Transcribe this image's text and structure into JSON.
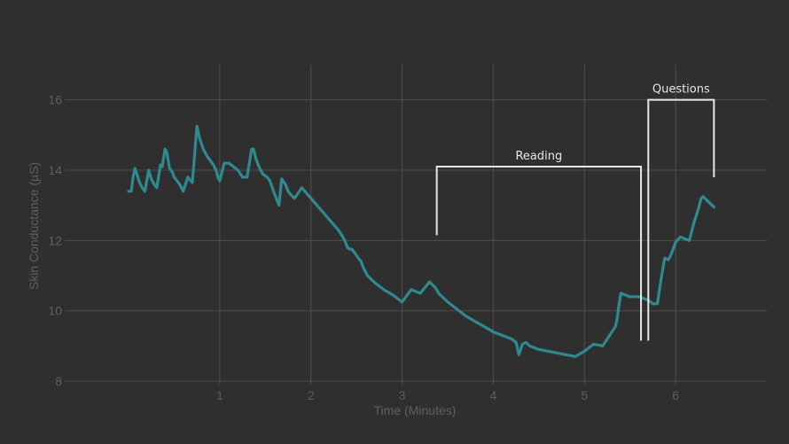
{
  "chart_data": {
    "type": "line",
    "xlabel": "Time (Minutes)",
    "ylabel": "Skin Conductance (µS)",
    "xlim": [
      -0.7,
      7.0
    ],
    "ylim": [
      7.9,
      17.0
    ],
    "x_ticks": [
      1,
      2,
      3,
      4,
      5,
      6
    ],
    "y_ticks": [
      8,
      10,
      12,
      14,
      16
    ],
    "grid": true,
    "colors": {
      "background": "#2f2f2f",
      "grid": "#4f4f4f",
      "series": "#2f8a8f",
      "annotation": "#e6e6e6",
      "text": "#5f5f5f"
    },
    "series": [
      {
        "x": [
          0.0,
          0.03,
          0.05,
          0.07,
          0.09,
          0.12,
          0.15,
          0.18,
          0.2,
          0.22,
          0.25,
          0.28,
          0.31,
          0.35,
          0.37,
          0.4,
          0.42,
          0.45,
          0.48,
          0.5,
          0.53,
          0.56,
          0.6,
          0.65,
          0.7,
          0.75,
          0.78,
          0.82,
          0.86,
          0.89,
          0.93,
          0.96,
          0.98,
          1.0,
          1.05,
          1.1,
          1.15,
          1.2,
          1.25,
          1.3,
          1.35,
          1.37,
          1.4,
          1.43,
          1.47,
          1.52,
          1.55,
          1.59,
          1.62,
          1.65,
          1.68,
          1.72,
          1.75,
          1.78,
          1.82,
          1.9,
          2.0,
          2.1,
          2.2,
          2.3,
          2.35,
          2.38,
          2.4,
          2.43,
          2.45,
          2.48,
          2.52,
          2.55,
          2.58,
          2.62,
          2.7,
          2.8,
          2.9,
          3.0,
          3.1,
          3.2,
          3.3,
          3.35,
          3.38,
          3.4,
          3.5,
          3.6,
          3.7,
          3.8,
          3.9,
          4.0,
          4.1,
          4.2,
          4.25,
          4.28,
          4.32,
          4.36,
          4.4,
          4.45,
          4.5,
          4.6,
          4.7,
          4.8,
          4.9,
          5.0,
          5.1,
          5.2,
          5.3,
          5.34,
          5.36,
          5.38,
          5.4,
          5.45,
          5.5,
          5.6,
          5.7,
          5.75,
          5.8,
          5.84,
          5.88,
          5.92,
          5.95,
          6.0,
          6.05,
          6.1,
          6.15,
          6.2,
          6.25,
          6.28,
          6.3,
          6.32,
          6.34,
          6.36,
          6.38,
          6.4,
          6.42
        ],
        "y": [
          13.4,
          13.4,
          13.8,
          14.05,
          13.9,
          13.65,
          13.5,
          13.4,
          13.7,
          14.0,
          13.75,
          13.6,
          13.5,
          14.15,
          14.1,
          14.6,
          14.5,
          14.05,
          13.95,
          13.8,
          13.7,
          13.6,
          13.4,
          13.8,
          13.65,
          15.25,
          14.9,
          14.6,
          14.4,
          14.3,
          14.15,
          14.0,
          13.8,
          13.7,
          14.2,
          14.2,
          14.1,
          14.0,
          13.8,
          13.8,
          14.6,
          14.6,
          14.3,
          14.1,
          13.9,
          13.8,
          13.7,
          13.4,
          13.2,
          13.0,
          13.75,
          13.6,
          13.4,
          13.3,
          13.2,
          13.5,
          13.2,
          12.9,
          12.6,
          12.3,
          12.1,
          11.95,
          11.8,
          11.75,
          11.75,
          11.65,
          11.5,
          11.4,
          11.2,
          11.0,
          10.8,
          10.6,
          10.45,
          10.25,
          10.6,
          10.5,
          10.82,
          10.7,
          10.6,
          10.5,
          10.25,
          10.05,
          9.85,
          9.7,
          9.55,
          9.4,
          9.3,
          9.2,
          9.1,
          8.75,
          9.05,
          9.1,
          9.0,
          8.95,
          8.9,
          8.85,
          8.8,
          8.75,
          8.7,
          8.85,
          9.05,
          9.0,
          9.4,
          9.55,
          9.8,
          10.2,
          10.5,
          10.45,
          10.4,
          10.4,
          10.3,
          10.2,
          10.2,
          10.9,
          11.5,
          11.45,
          11.6,
          11.95,
          12.1,
          12.05,
          12.0,
          12.5,
          12.9,
          13.2,
          13.25,
          13.2,
          13.15,
          13.1,
          13.05,
          13.0,
          12.95
        ],
        "note": ""
      }
    ],
    "annotations": [
      {
        "label": "Reading",
        "x_start": 3.38,
        "x_end": 5.62,
        "y_top": 14.1,
        "y_bottom_left": 12.15,
        "y_bottom_right": 9.15
      },
      {
        "label": "Questions",
        "x_start": 5.7,
        "x_end": 6.42,
        "y_top": 16.0,
        "y_bottom_left": 9.15,
        "y_bottom_right": 13.8
      }
    ]
  }
}
